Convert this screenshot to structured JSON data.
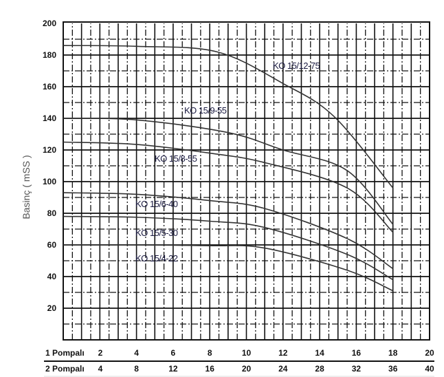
{
  "chart_data": {
    "type": "line",
    "title": "",
    "ylabel": "Basinç ( mSS )",
    "ylim": [
      0,
      200
    ],
    "yticks": [
      20,
      40,
      60,
      80,
      100,
      120,
      140,
      160,
      180,
      200
    ],
    "xlim": [
      0,
      20
    ],
    "grid": true,
    "x_axes": [
      {
        "label": "1 Pompalı",
        "ticks": [
          "2",
          "4",
          "6",
          "8",
          "10",
          "12",
          "14",
          "16",
          "18",
          "20"
        ]
      },
      {
        "label": "2 Pompalı",
        "ticks": [
          "4",
          "8",
          "12",
          "16",
          "20",
          "24",
          "28",
          "32",
          "36",
          "40"
        ]
      }
    ],
    "series": [
      {
        "name": "KO 15/12-75",
        "x": [
          0,
          4,
          8.4,
          12,
          14.8,
          18
        ],
        "y": [
          186,
          185.5,
          182,
          162,
          141,
          96
        ]
      },
      {
        "name": "KO 15/9-55",
        "x": [
          0,
          4,
          9,
          12,
          15.5,
          18
        ],
        "y": [
          140,
          139,
          131,
          120,
          107,
          73
        ]
      },
      {
        "name": "KO 15/8-55",
        "x": [
          0,
          4,
          8,
          11,
          15.5,
          18
        ],
        "y": [
          125,
          123.5,
          118,
          112,
          96,
          68
        ]
      },
      {
        "name": "KO 15/6-40",
        "x": [
          0,
          4,
          8,
          11,
          15.5,
          18
        ],
        "y": [
          93,
          92,
          88,
          83,
          64,
          45
        ]
      },
      {
        "name": "KO 15/5-30",
        "x": [
          0,
          4,
          8,
          11,
          15.5,
          18
        ],
        "y": [
          78,
          77.5,
          75,
          71,
          54,
          38
        ]
      },
      {
        "name": "KO 15/4-22",
        "x": [
          0,
          4,
          8,
          11,
          15.5,
          18
        ],
        "y": [
          60,
          60,
          59.5,
          58,
          44,
          31
        ]
      }
    ]
  }
}
